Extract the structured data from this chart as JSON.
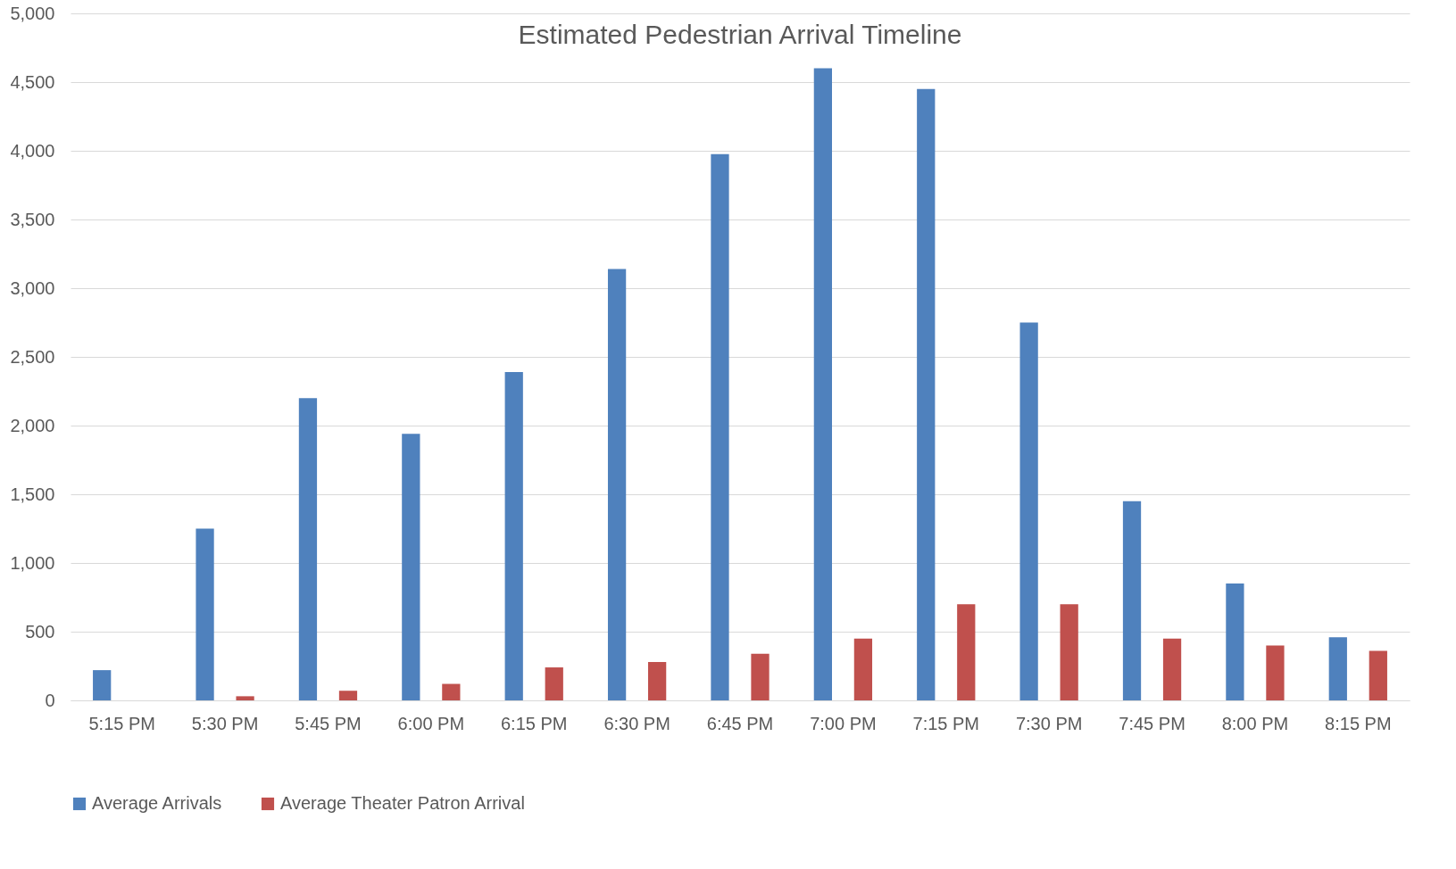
{
  "chart_data": {
    "type": "bar",
    "title": "Estimated Pedestrian Arrival Timeline",
    "categories": [
      "5:15 PM",
      "5:30 PM",
      "5:45 PM",
      "6:00 PM",
      "6:15 PM",
      "6:30 PM",
      "6:45 PM",
      "7:00 PM",
      "7:15 PM",
      "7:30 PM",
      "7:45 PM",
      "8:00 PM",
      "8:15 PM"
    ],
    "series": [
      {
        "name": "Average Arrivals",
        "color": "#4f81bd",
        "values": [
          220,
          1250,
          2200,
          1940,
          2390,
          3140,
          3975,
          4600,
          4450,
          2750,
          1450,
          850,
          460
        ]
      },
      {
        "name": "Average Theater Patron Arrival",
        "color": "#c0504d",
        "values": [
          0,
          30,
          70,
          120,
          240,
          280,
          340,
          450,
          700,
          700,
          450,
          400,
          360
        ]
      }
    ],
    "ylim": [
      0,
      5000
    ],
    "yticks": [
      0,
      500,
      {
        "value": 1000,
        "label": "1,000"
      },
      {
        "value": 1500,
        "label": "1,500"
      },
      {
        "value": 2000,
        "label": "2,000"
      },
      {
        "value": 2500,
        "label": "2,500"
      },
      {
        "value": 3000,
        "label": "3,000"
      },
      {
        "value": 3500,
        "label": "3,500"
      },
      {
        "value": 4000,
        "label": "4,000"
      },
      {
        "value": 4500,
        "label": "4,500"
      },
      {
        "value": 5000,
        "label": "5,000"
      }
    ],
    "grid": "y",
    "legend": "bottom"
  }
}
